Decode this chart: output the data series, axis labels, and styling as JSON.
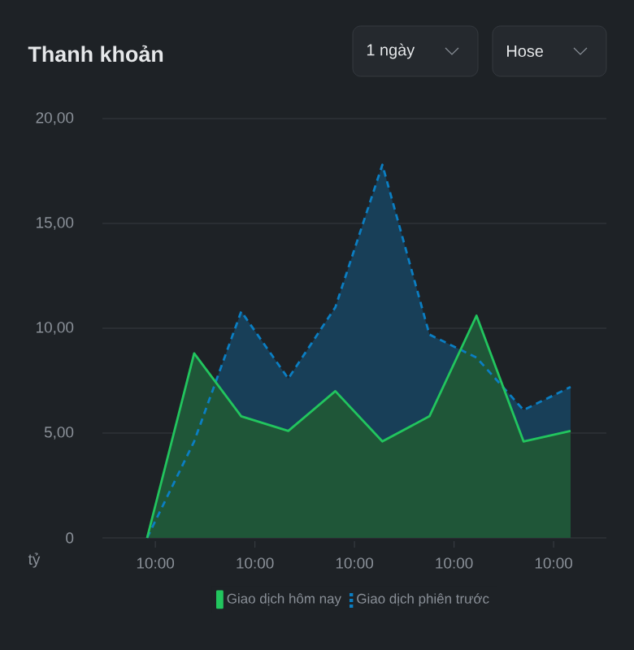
{
  "chart_data": {
    "type": "area",
    "title": "Thanh khoản",
    "annotations": [
      "1 ngày",
      "Hose",
      "10:00",
      "10:00",
      "10:00",
      "10:00",
      "10:00"
    ],
    "ylabel": "tỷ",
    "categories": [
      null,
      null,
      null,
      null,
      null,
      null,
      null,
      null,
      null,
      null
    ],
    "ylim": [
      0,
      20
    ],
    "yticks": [
      0,
      {
        "value": 5,
        "label": "5,00"
      },
      {
        "value": 10,
        "label": "10,00"
      },
      {
        "value": 15,
        "label": "15,00"
      },
      {
        "value": 20,
        "label": "20,00"
      }
    ],
    "grid": "y",
    "legend": "bottom",
    "marker": "none",
    "series": [
      {
        "name": "Giao dịch hôm nay",
        "color": "#22c55e",
        "line_style": "solid",
        "values": [
          0,
          8.8,
          5.8,
          5.1,
          7.0,
          4.6,
          5.8,
          10.6,
          4.6,
          5.1
        ]
      },
      {
        "name": "Giao dịch phiên trước",
        "color": "#0b7ec2",
        "line_style": "dashed",
        "values": [
          0,
          4.6,
          10.8,
          7.6,
          11.0,
          17.8,
          9.7,
          8.6,
          6.1,
          7.2
        ]
      }
    ]
  }
}
